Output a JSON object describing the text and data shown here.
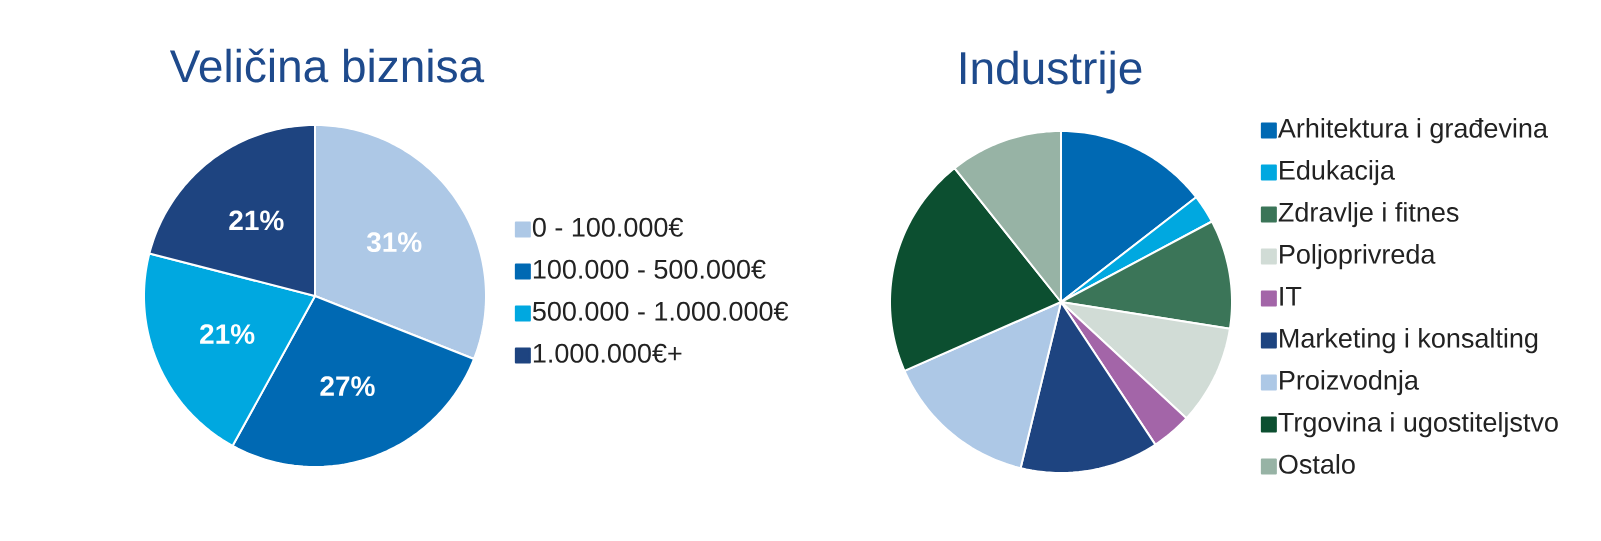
{
  "chart_data": [
    {
      "type": "pie",
      "title": "Veličina biznisa",
      "categories": [
        "0 - 100.000€",
        "100.000 - 500.000€",
        "500.000 - 1.000.000€",
        "1.000.000€+"
      ],
      "values": [
        31,
        27,
        21,
        21
      ],
      "value_labels": [
        "31%",
        "27%",
        "21%",
        "21%"
      ],
      "colors": [
        "#adc8e6",
        "#0069b3",
        "#00a8e0",
        "#1e4480"
      ],
      "legend": "right"
    },
    {
      "type": "pie",
      "title": "Industrije",
      "categories": [
        "Arhitektura i građevina",
        "Edukacija",
        "Zdravlje i fitnes",
        "Poljoprivreda",
        "IT",
        "Marketing i konsalting",
        "Proizvodnja",
        "Trgovina i ugostiteljstvo",
        "Ostalo"
      ],
      "values": [
        14.5,
        2.7,
        10.3,
        9.4,
        3.8,
        13.1,
        14.6,
        20.9,
        10.7
      ],
      "colors": [
        "#0069b3",
        "#00a8e0",
        "#3b7558",
        "#d1dcd6",
        "#a365a8",
        "#1e4480",
        "#adc8e6",
        "#0c4f30",
        "#97b3a5"
      ],
      "legend": "right"
    }
  ]
}
